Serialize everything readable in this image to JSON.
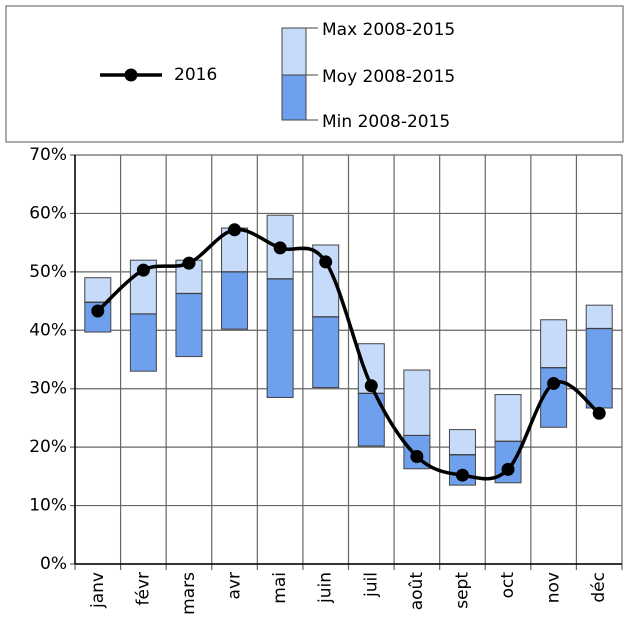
{
  "chart_data": {
    "type": "line-range",
    "categories": [
      "janv",
      "févr",
      "mars",
      "avr",
      "mai",
      "juin",
      "juil",
      "août",
      "sept",
      "oct",
      "nov",
      "déc"
    ],
    "series": [
      {
        "name": "2016",
        "color": "#000000",
        "values": [
          43.3,
          50.3,
          51.5,
          57.2,
          54.1,
          51.7,
          30.5,
          18.4,
          15.2,
          16.2,
          30.9,
          25.8
        ]
      },
      {
        "name": "Max 2008-2015",
        "color": "#c6dafa",
        "values": [
          49,
          52,
          52,
          57.5,
          59.7,
          54.6,
          37.7,
          33.2,
          23,
          29,
          41.8,
          44.3
        ]
      },
      {
        "name": "Moy 2008-2015",
        "color": "#404040",
        "values": [
          44.8,
          42.8,
          46.3,
          50,
          48.8,
          42.3,
          29.2,
          22,
          18.7,
          21,
          33.6,
          40.3
        ]
      },
      {
        "name": "Min 2008-2015",
        "color": "#6fa0ee",
        "values": [
          39.7,
          33,
          35.5,
          40.2,
          28.5,
          30.2,
          20.2,
          16.3,
          13.5,
          13.9,
          23.4,
          26.7
        ]
      }
    ],
    "ylim": [
      0,
      70
    ],
    "yticks": [
      {
        "value": 0,
        "label": "0%"
      },
      {
        "value": 10,
        "label": "10%"
      },
      {
        "value": 20,
        "label": "20%"
      },
      {
        "value": 30,
        "label": "30%"
      },
      {
        "value": 40,
        "label": "40%"
      },
      {
        "value": 50,
        "label": "50%"
      },
      {
        "value": 60,
        "label": "60%"
      },
      {
        "value": 70,
        "label": "70%"
      }
    ],
    "grid": true
  }
}
